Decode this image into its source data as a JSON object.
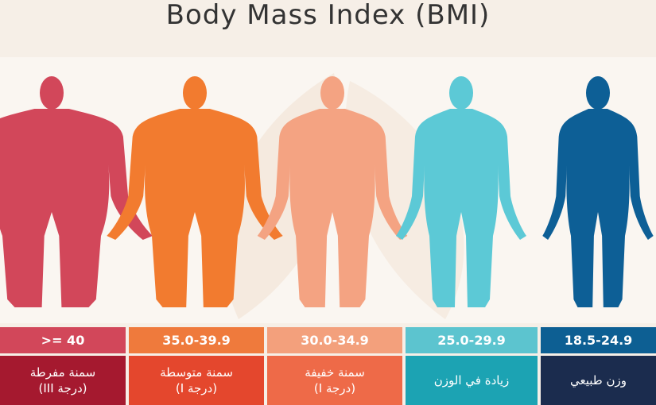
{
  "title": "Body Mass Index (BMI)",
  "categories": [
    {
      "range": ">= 40",
      "label": [
        "سمنة مفرطة",
        "(درجة III)"
      ]
    },
    {
      "range": "35.0-39.9",
      "label": [
        "سمنة متوسطة",
        "(درجة I)"
      ]
    },
    {
      "range": "30.0-34.9",
      "label": [
        "سمنة خفيفة",
        "(درجة I)"
      ]
    },
    {
      "range": "25.0-29.9",
      "label": [
        "زيادة في الوزن"
      ]
    },
    {
      "range": "18.5-24.9",
      "label": [
        "وزن طبيعي"
      ]
    }
  ]
}
